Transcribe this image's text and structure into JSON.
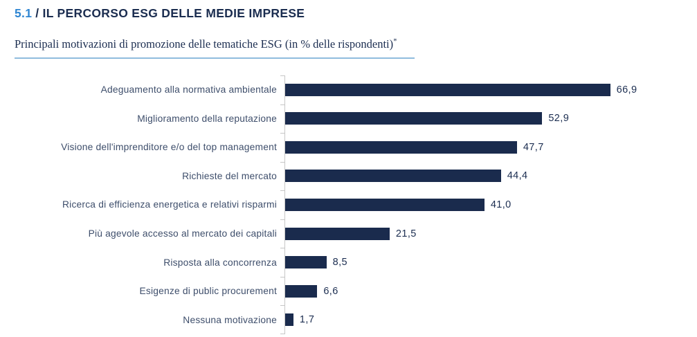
{
  "header": {
    "section_number": "5.1",
    "title": "/ IL PERCORSO ESG DELLE MEDIE IMPRESE"
  },
  "subtitle": {
    "text": "Principali motivazioni di promozione delle tematiche ESG (in % delle rispondenti)",
    "asterisk": "*"
  },
  "colors": {
    "accent_blue": "#2F86D2",
    "title_navy": "#1B2D50",
    "bar_fill": "#1A2B4D",
    "category_label": "#3E4E6B",
    "underline": "#8FBCDE",
    "axis": "#C6C6C6"
  },
  "chart_data": {
    "type": "bar",
    "orientation": "horizontal",
    "title": "Principali motivazioni di promozione delle tematiche ESG (in % delle rispondenti)*",
    "categories": [
      "Adeguamento alla normativa ambientale",
      "Miglioramento della reputazione",
      "Visione dell'imprenditore e/o del top management",
      "Richieste del mercato",
      "Ricerca di efficienza energetica e relativi risparmi",
      "Più agevole accesso al mercato dei capitali",
      "Risposta alla concorrenza",
      "Esigenze di public procurement",
      "Nessuna motivazione"
    ],
    "values": [
      66.9,
      52.9,
      47.7,
      44.4,
      41.0,
      21.5,
      8.5,
      6.6,
      1.7
    ],
    "value_labels": [
      "66,9",
      "52,9",
      "47,7",
      "44,4",
      "41,0",
      "21,5",
      "8,5",
      "6,6",
      "1,7"
    ],
    "xlabel": "",
    "ylabel": "",
    "xlim": [
      0,
      80
    ],
    "grid": false,
    "legend": false,
    "value_label_position": "end-of-bar"
  }
}
